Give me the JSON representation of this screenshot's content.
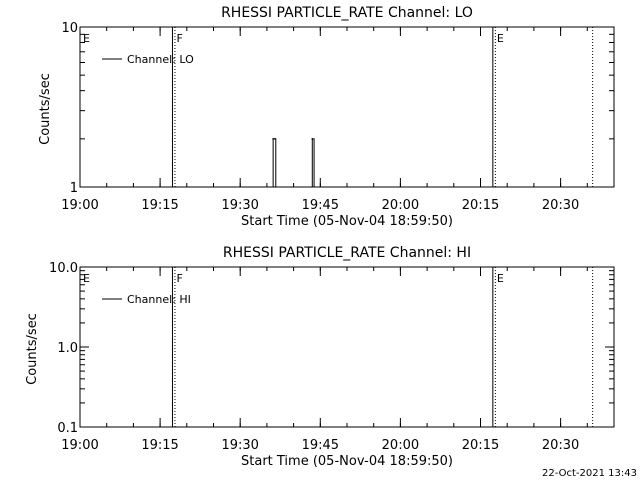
{
  "colors": {
    "background": "#ffffff",
    "foreground": "#000000"
  },
  "footer": {
    "timestamp": "22-Oct-2021 13:43"
  },
  "chart_data": [
    {
      "type": "line",
      "title": "RHESSI PARTICLE_RATE Channel: LO",
      "xlabel": "Start Time (05-Nov-04 18:59:50)",
      "ylabel": "Counts/sec",
      "yscale": "log",
      "ylim": [
        1,
        10
      ],
      "xlim": [
        "19:00",
        "20:40"
      ],
      "x_ticks": [
        "19:00",
        "19:15",
        "19:30",
        "19:45",
        "20:00",
        "20:15",
        "20:30"
      ],
      "y_ticks": [
        "1",
        "10"
      ],
      "legend": {
        "placement": "top-left",
        "entries": [
          "Channel: LO"
        ]
      },
      "series": [
        {
          "name": "Channel: LO",
          "x": [
            "19:36:00",
            "19:36:10",
            "19:36:30",
            "19:36:40",
            "19:43:20",
            "19:43:30",
            "19:43:50"
          ],
          "values": [
            1,
            2,
            2,
            1,
            1,
            2,
            1
          ]
        }
      ],
      "markers": [
        {
          "time": "19:00",
          "label": "E",
          "style": "none"
        },
        {
          "time": "19:17:30",
          "label": "F",
          "style": "solid"
        },
        {
          "time": "20:17:30",
          "label": "E",
          "style": "solid"
        },
        {
          "time": "20:36",
          "label": "",
          "style": "dotted"
        }
      ]
    },
    {
      "type": "line",
      "title": "RHESSI PARTICLE_RATE Channel: HI",
      "xlabel": "Start Time (05-Nov-04 18:59:50)",
      "ylabel": "Counts/sec",
      "yscale": "log",
      "ylim": [
        0.1,
        10
      ],
      "xlim": [
        "19:00",
        "20:40"
      ],
      "x_ticks": [
        "19:00",
        "19:15",
        "19:30",
        "19:45",
        "20:00",
        "20:15",
        "20:30"
      ],
      "y_ticks": [
        "0.1",
        "1.0",
        "10.0"
      ],
      "legend": {
        "placement": "top-left",
        "entries": [
          "Channel: HI"
        ]
      },
      "series": [
        {
          "name": "Channel: HI",
          "x": [],
          "values": []
        }
      ],
      "markers": [
        {
          "time": "19:00",
          "label": "E",
          "style": "none"
        },
        {
          "time": "19:17:30",
          "label": "F",
          "style": "solid"
        },
        {
          "time": "20:17:30",
          "label": "E",
          "style": "solid"
        },
        {
          "time": "20:36",
          "label": "",
          "style": "dotted"
        }
      ]
    }
  ]
}
